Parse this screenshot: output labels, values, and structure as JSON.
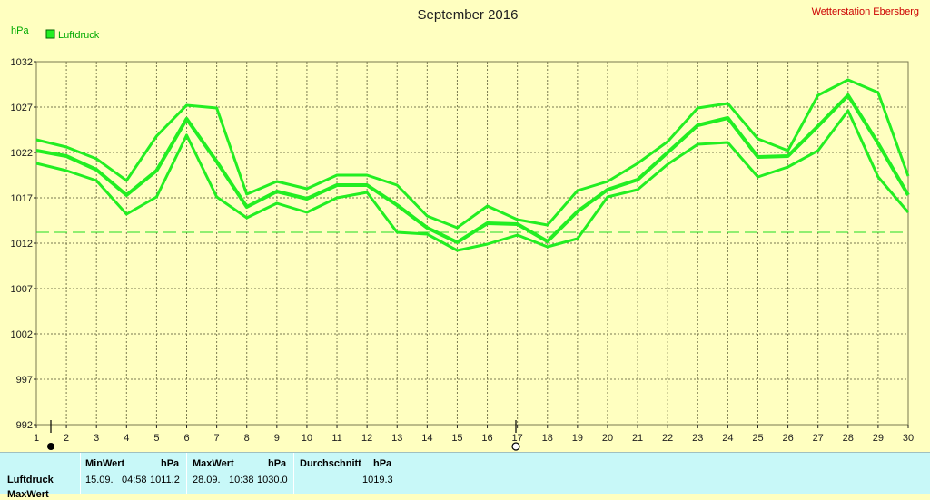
{
  "header": {
    "station": "Wetterstation Ebersberg",
    "unit": "hPa",
    "legend_label": "Luftdruck"
  },
  "colors": {
    "series": "#22ee22",
    "grid": "#7a7a50",
    "reference": "#22dd22",
    "background": "#ffffc0",
    "panel": "#c8f8f8"
  },
  "chart_data": {
    "type": "line",
    "title": "September 2016",
    "ylabel": "hPa",
    "ylim": [
      992,
      1032
    ],
    "yticks": [
      "1032",
      "1027",
      "1022",
      "1017",
      "1012",
      "1007",
      "1002",
      "997",
      "992"
    ],
    "x": [
      1,
      2,
      3,
      4,
      5,
      6,
      7,
      8,
      9,
      10,
      11,
      12,
      13,
      14,
      15,
      16,
      17,
      18,
      19,
      20,
      21,
      22,
      23,
      24,
      25,
      26,
      27,
      28,
      29,
      30
    ],
    "grid": true,
    "reference_line": 1013.2,
    "series": [
      {
        "name": "Luftdruck",
        "role": "max",
        "values": [
          1023.4,
          1022.6,
          1021.3,
          1018.9,
          1023.8,
          1027.2,
          1026.9,
          1017.4,
          1018.8,
          1018.0,
          1019.5,
          1019.5,
          1018.4,
          1015.0,
          1013.7,
          1016.1,
          1014.6,
          1014.0,
          1017.8,
          1018.8,
          1020.8,
          1023.2,
          1026.9,
          1027.4,
          1023.5,
          1022.2,
          1028.3,
          1030.0,
          1028.6,
          1019.4
        ]
      },
      {
        "name": "Luftdruck",
        "role": "mean",
        "values": [
          1022.2,
          1021.6,
          1020.1,
          1017.3,
          1020.0,
          1025.7,
          1021.0,
          1016.0,
          1017.7,
          1016.9,
          1018.4,
          1018.4,
          1016.2,
          1013.7,
          1012.1,
          1014.2,
          1014.1,
          1012.2,
          1015.5,
          1017.9,
          1019.0,
          1022.0,
          1025.0,
          1025.8,
          1021.5,
          1021.6,
          1024.9,
          1028.3,
          1023.0,
          1017.3
        ]
      },
      {
        "name": "Luftdruck",
        "role": "min",
        "values": [
          1020.8,
          1020.0,
          1018.9,
          1015.2,
          1017.1,
          1023.9,
          1017.1,
          1014.8,
          1016.4,
          1015.4,
          1017.0,
          1017.6,
          1013.2,
          1013.0,
          1011.2,
          1011.9,
          1012.9,
          1011.6,
          1012.5,
          1017.1,
          1017.9,
          1020.7,
          1022.9,
          1023.1,
          1019.3,
          1020.4,
          1022.2,
          1026.6,
          1019.3,
          1015.4
        ]
      }
    ]
  },
  "stats": {
    "row_labels": [
      "Luftdruck",
      "MaxWert"
    ],
    "min": {
      "header": "MinWert",
      "unit": "hPa",
      "date": "15.09.",
      "time": "04:58",
      "value": "1011.2"
    },
    "max": {
      "header": "MaxWert",
      "unit": "hPa",
      "date": "28.09.",
      "time": "10:38",
      "value": "1030.0"
    },
    "avg": {
      "header": "Durchschnitt",
      "unit": "hPa",
      "value": "1019.3"
    }
  }
}
